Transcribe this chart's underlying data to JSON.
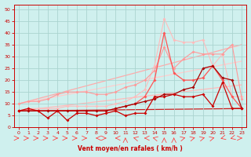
{
  "background_color": "#cff0ee",
  "grid_color": "#aad4d0",
  "xlabel": "Vent moyen/en rafales ( km/h )",
  "xlim": [
    -0.5,
    23.5
  ],
  "ylim": [
    0,
    52
  ],
  "yticks": [
    0,
    5,
    10,
    15,
    20,
    25,
    30,
    35,
    40,
    45,
    50
  ],
  "xticks": [
    0,
    1,
    2,
    3,
    4,
    5,
    6,
    7,
    8,
    9,
    10,
    11,
    12,
    13,
    14,
    15,
    16,
    17,
    18,
    19,
    20,
    21,
    22,
    23
  ],
  "series": [
    {
      "x": [
        0,
        1,
        2,
        3,
        4,
        5,
        6,
        7,
        8,
        9,
        10,
        11,
        12,
        13,
        14,
        15,
        16,
        17,
        18,
        19,
        20,
        21,
        22,
        23
      ],
      "y": [
        7,
        8,
        8,
        8,
        8,
        9,
        9,
        9,
        9,
        9,
        10,
        11,
        13,
        16,
        26,
        46,
        37,
        36,
        36,
        37,
        26,
        31,
        13,
        13
      ],
      "color": "#ffbbbb",
      "linewidth": 0.8,
      "marker": "D",
      "markersize": 2.0,
      "zorder": 2
    },
    {
      "x": [
        0,
        1,
        2,
        3,
        4,
        5,
        6,
        7,
        8,
        9,
        10,
        11,
        12,
        13,
        14,
        15,
        16,
        17,
        18,
        19,
        20,
        21,
        22,
        23
      ],
      "y": [
        10,
        11,
        11,
        12,
        14,
        15,
        15,
        15,
        14,
        14,
        15,
        17,
        18,
        20,
        24,
        34,
        25,
        29,
        32,
        31,
        31,
        31,
        35,
        12
      ],
      "color": "#ff9999",
      "linewidth": 0.8,
      "marker": "D",
      "markersize": 2.0,
      "zorder": 2
    },
    {
      "x": [
        0,
        1,
        2,
        3,
        4,
        5,
        6,
        7,
        8,
        9,
        10,
        11,
        12,
        13,
        14,
        15,
        16,
        17,
        18,
        19,
        20,
        21,
        22,
        23
      ],
      "y": [
        7,
        7,
        7,
        7,
        7,
        7,
        7,
        7,
        7,
        7,
        8,
        9,
        10,
        13,
        20,
        40,
        23,
        20,
        20,
        21,
        26,
        20,
        13,
        8
      ],
      "color": "#ff5555",
      "linewidth": 0.9,
      "marker": "D",
      "markersize": 2.0,
      "zorder": 3
    },
    {
      "x": [
        0,
        1,
        2,
        3,
        4,
        5,
        6,
        7,
        8,
        9,
        10,
        11,
        12,
        13,
        14,
        15,
        16,
        17,
        18,
        19,
        20,
        21,
        22,
        23
      ],
      "y": [
        7,
        8,
        7,
        4,
        7,
        3,
        6,
        6,
        5,
        6,
        7,
        5,
        6,
        6,
        13,
        13,
        14,
        13,
        13,
        14,
        9,
        19,
        8,
        8
      ],
      "color": "#cc0000",
      "linewidth": 0.9,
      "marker": "D",
      "markersize": 2.0,
      "zorder": 5
    },
    {
      "x": [
        0,
        1,
        2,
        3,
        4,
        5,
        6,
        7,
        8,
        9,
        10,
        11,
        12,
        13,
        14,
        15,
        16,
        17,
        18,
        19,
        20,
        21,
        22,
        23
      ],
      "y": [
        7,
        7,
        7,
        7,
        7,
        7,
        7,
        7,
        7,
        7,
        8,
        9,
        10,
        11,
        12,
        14,
        14,
        16,
        17,
        25,
        26,
        21,
        20,
        8
      ],
      "color": "#aa0000",
      "linewidth": 0.9,
      "marker": "D",
      "markersize": 2.0,
      "zorder": 4
    }
  ],
  "regression_lines": [
    {
      "x0": 0,
      "y0": 10,
      "x1": 23,
      "y1": 35,
      "color": "#ffaaaa",
      "linewidth": 0.9,
      "zorder": 1
    },
    {
      "x0": 0,
      "y0": 10,
      "x1": 23,
      "y1": 28,
      "color": "#ffcccc",
      "linewidth": 0.9,
      "zorder": 1
    },
    {
      "x0": 0,
      "y0": 7,
      "x1": 23,
      "y1": 18,
      "color": "#ffbbbb",
      "linewidth": 0.9,
      "zorder": 1
    },
    {
      "x0": 0,
      "y0": 7,
      "x1": 23,
      "y1": 8,
      "color": "#cc2222",
      "linewidth": 0.9,
      "zorder": 1
    }
  ],
  "wind_arrows": {
    "x": [
      0,
      1,
      2,
      3,
      4,
      5,
      6,
      7,
      8,
      9,
      10,
      11,
      12,
      13,
      14,
      15,
      16,
      17,
      18,
      19,
      20,
      21,
      22,
      23
    ],
    "angles": [
      0,
      0,
      0,
      0,
      0,
      0,
      0,
      0,
      180,
      0,
      180,
      90,
      135,
      180,
      135,
      90,
      90,
      45,
      45,
      45,
      45,
      225,
      225,
      0
    ],
    "color": "#ff4444"
  }
}
